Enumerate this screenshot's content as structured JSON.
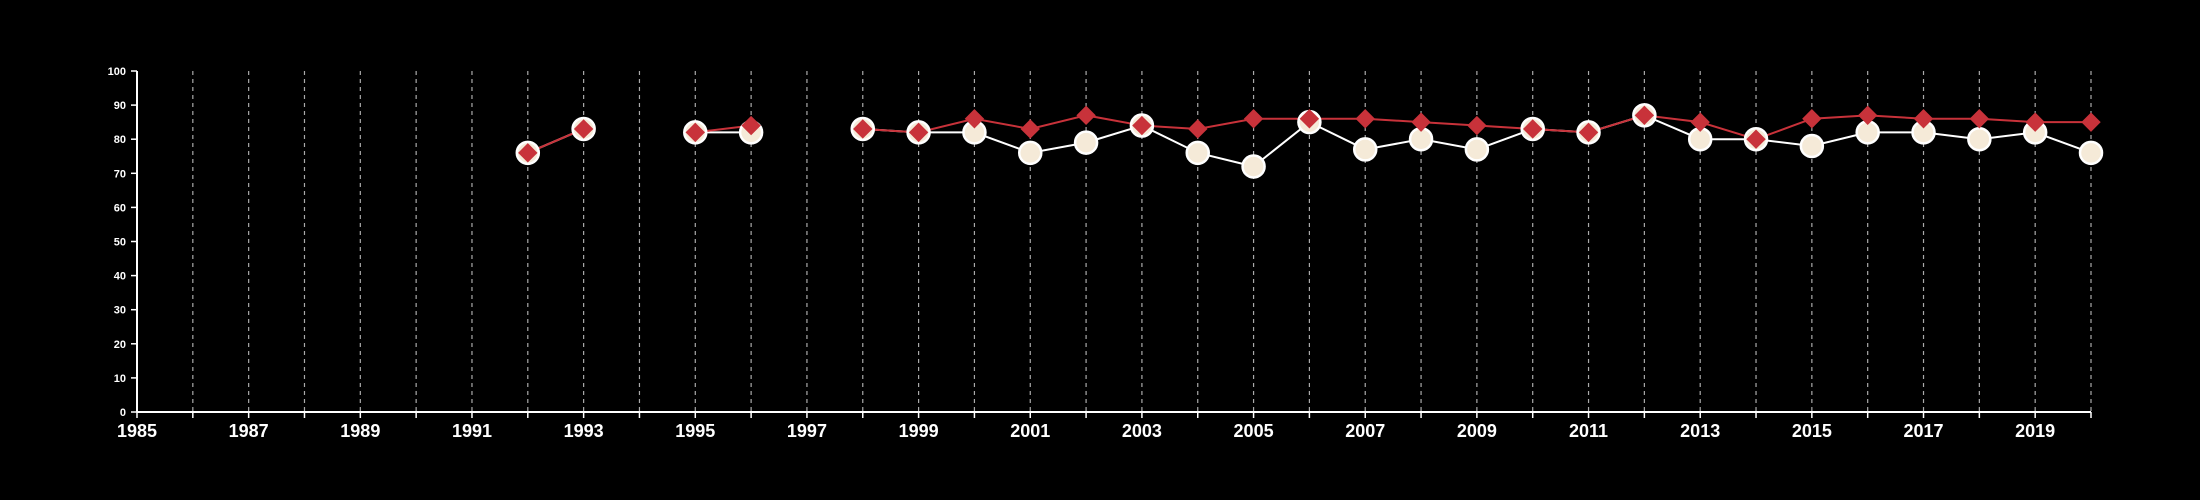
{
  "chart_data": {
    "type": "line",
    "title": "",
    "xlabel": "",
    "ylabel": "",
    "xlim": [
      1985,
      2020
    ],
    "ylim": [
      0,
      100
    ],
    "x_ticks": [
      1985,
      1987,
      1989,
      1991,
      1993,
      1995,
      1997,
      1999,
      2001,
      2003,
      2005,
      2007,
      2009,
      2011,
      2013,
      2015,
      2017,
      2019
    ],
    "x_tick_labels": [
      "1985",
      "1987",
      "1989",
      "1991",
      "1993",
      "1995",
      "1997",
      "1999",
      "2001",
      "2003",
      "2005",
      "2007",
      "2009",
      "2011",
      "2013",
      "2015",
      "2017",
      "2019"
    ],
    "y_ticks": [
      0,
      10,
      20,
      30,
      40,
      50,
      60,
      70,
      80,
      90,
      100
    ],
    "y_tick_labels": [
      "0",
      "10",
      "20",
      "30",
      "40",
      "50",
      "60",
      "70",
      "80",
      "90",
      "100"
    ],
    "grid": "vertical dashed lines at every year",
    "legend": "none",
    "colors": {
      "background": "#000000",
      "axis": "#ffffff",
      "grid": "#aaaaaa"
    },
    "series": [
      {
        "marker": "circle",
        "color": "#f5ead8",
        "line_color": "#ffffff",
        "points": [
          [
            1992,
            76
          ],
          [
            1993,
            83
          ],
          [
            1995,
            82
          ],
          [
            1996,
            82
          ],
          [
            1998,
            83
          ],
          [
            1999,
            82
          ],
          [
            2000,
            82
          ],
          [
            2001,
            76
          ],
          [
            2002,
            79
          ],
          [
            2003,
            84
          ],
          [
            2004,
            76
          ],
          [
            2005,
            72
          ],
          [
            2006,
            85
          ],
          [
            2007,
            77
          ],
          [
            2008,
            80
          ],
          [
            2009,
            77
          ],
          [
            2010,
            83
          ],
          [
            2011,
            82
          ],
          [
            2012,
            87
          ],
          [
            2013,
            80
          ],
          [
            2014,
            80
          ],
          [
            2015,
            78
          ],
          [
            2016,
            82
          ],
          [
            2017,
            82
          ],
          [
            2018,
            80
          ],
          [
            2019,
            82
          ],
          [
            2020,
            76
          ]
        ]
      },
      {
        "marker": "diamond",
        "color": "#c8323a",
        "line_color": "#c8323a",
        "points": [
          [
            1992,
            76
          ],
          [
            1993,
            83
          ],
          [
            1995,
            82
          ],
          [
            1996,
            84
          ],
          [
            1998,
            83
          ],
          [
            1999,
            82
          ],
          [
            2000,
            86
          ],
          [
            2001,
            83
          ],
          [
            2002,
            87
          ],
          [
            2003,
            84
          ],
          [
            2004,
            83
          ],
          [
            2005,
            86
          ],
          [
            2006,
            86
          ],
          [
            2007,
            86
          ],
          [
            2008,
            85
          ],
          [
            2009,
            84
          ],
          [
            2010,
            83
          ],
          [
            2011,
            82
          ],
          [
            2012,
            87
          ],
          [
            2013,
            85
          ],
          [
            2014,
            80
          ],
          [
            2015,
            86
          ],
          [
            2016,
            87
          ],
          [
            2017,
            86
          ],
          [
            2018,
            86
          ],
          [
            2019,
            85
          ],
          [
            2020,
            85
          ]
        ]
      }
    ]
  }
}
